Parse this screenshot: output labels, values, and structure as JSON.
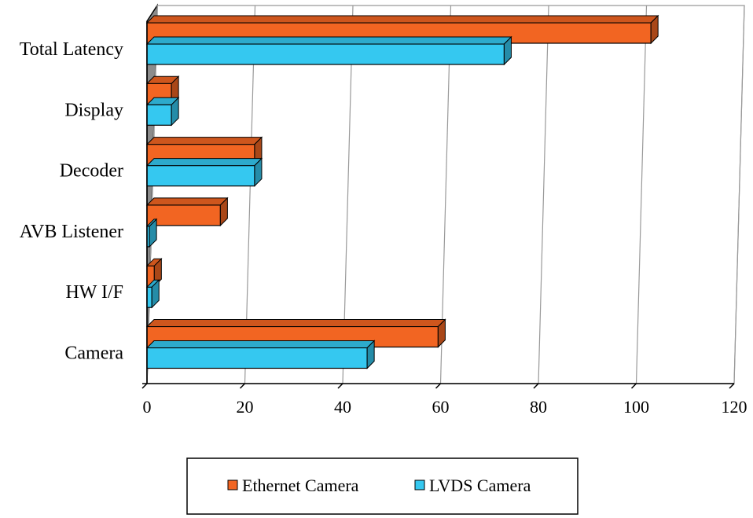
{
  "chart_data": {
    "type": "bar",
    "orientation": "horizontal",
    "style": "3d",
    "title": "",
    "xlabel": "",
    "ylabel": "",
    "categories": [
      "Total Latency",
      "Display",
      "Decoder",
      "AVB Listener",
      "HW I/F",
      "Camera"
    ],
    "series": [
      {
        "name": "Ethernet Camera",
        "color": "#F26522",
        "values": [
          103,
          5,
          22,
          15,
          1.5,
          59.5
        ]
      },
      {
        "name": "LVDS Camera",
        "color": "#35C8F0",
        "values": [
          73,
          5,
          22,
          0.5,
          1,
          45
        ]
      }
    ],
    "xlim": [
      0,
      120
    ],
    "xticks": [
      "0",
      "20",
      "40",
      "60",
      "80",
      "100",
      "120"
    ],
    "grid": true,
    "legend_position": "bottom"
  }
}
